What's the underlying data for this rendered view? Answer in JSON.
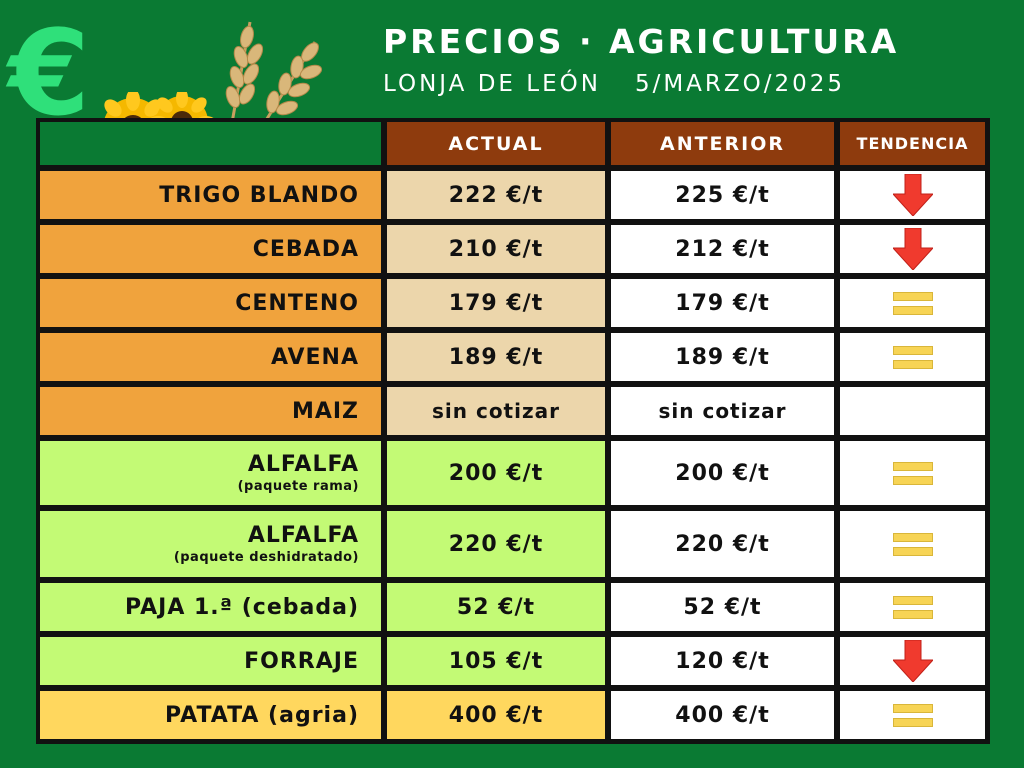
{
  "header": {
    "title": "PRECIOS · AGRICULTURA",
    "subtitle_place": "LONJA DE LEÓN",
    "subtitle_date": "5/MARZO/2025",
    "currency_symbol": "€"
  },
  "columns": {
    "actual": "ACTUAL",
    "anterior": "ANTERIOR",
    "tendencia": "TENDENCIA"
  },
  "colors": {
    "background": "#0a7a33",
    "header": "#8e3b0d",
    "cereal": "#f0a33d",
    "cereal_actual": "#ecd6ab",
    "forage": "#c3fa75",
    "potato": "#ffd75e",
    "trend_down": "#f03a2e",
    "trend_equal": "#f7d455"
  },
  "rows": [
    {
      "name": "TRIGO BLANDO",
      "sub": "",
      "actual": "222 €/t",
      "anterior": "225 €/t",
      "trend": "down-arrow-icon"
    },
    {
      "name": "CEBADA",
      "sub": "",
      "actual": "210 €/t",
      "anterior": "212 €/t",
      "trend": "down-arrow-icon"
    },
    {
      "name": "CENTENO",
      "sub": "",
      "actual": "179 €/t",
      "anterior": "179 €/t",
      "trend": "equal-icon"
    },
    {
      "name": "AVENA",
      "sub": "",
      "actual": "189 €/t",
      "anterior": "189 €/t",
      "trend": "equal-icon"
    },
    {
      "name": "MAIZ",
      "sub": "",
      "actual": "sin cotizar",
      "anterior": "sin cotizar",
      "trend": "none"
    },
    {
      "name": "ALFALFA",
      "sub": "(paquete rama)",
      "actual": "200 €/t",
      "anterior": "200 €/t",
      "trend": "equal-icon"
    },
    {
      "name": "ALFALFA",
      "sub": "(paquete deshidratado)",
      "actual": "220 €/t",
      "anterior": "220 €/t",
      "trend": "equal-icon"
    },
    {
      "name": "PAJA 1.ª (cebada)",
      "sub": "",
      "actual": "52 €/t",
      "anterior": "52 €/t",
      "trend": "equal-icon"
    },
    {
      "name": "FORRAJE",
      "sub": "",
      "actual": "105 €/t",
      "anterior": "120 €/t",
      "trend": "down-arrow-icon"
    },
    {
      "name": "PATATA (agria)",
      "sub": "",
      "actual": "400 €/t",
      "anterior": "400 €/t",
      "trend": "equal-icon"
    }
  ]
}
